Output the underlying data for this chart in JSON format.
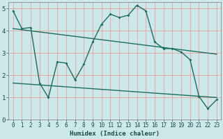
{
  "xlabel": "Humidex (Indice chaleur)",
  "bg_color": "#cce8e8",
  "grid_color": "#e8a0a0",
  "line_color": "#1a6e60",
  "xlim": [
    -0.5,
    23.5
  ],
  "ylim": [
    0,
    5.3
  ],
  "xticks": [
    0,
    1,
    2,
    3,
    4,
    5,
    6,
    7,
    8,
    9,
    10,
    11,
    12,
    13,
    14,
    15,
    16,
    17,
    18,
    19,
    20,
    21,
    22,
    23
  ],
  "yticks": [
    0,
    1,
    2,
    3,
    4,
    5
  ],
  "main_line_x": [
    0,
    1,
    2,
    3,
    4,
    5,
    6,
    7,
    8,
    9,
    10,
    11,
    12,
    13,
    14,
    15,
    16,
    17,
    18,
    19,
    20,
    21,
    22,
    23
  ],
  "main_line_y": [
    4.9,
    4.1,
    4.15,
    1.65,
    1.0,
    2.6,
    2.55,
    1.8,
    2.5,
    3.5,
    4.3,
    4.75,
    4.6,
    4.7,
    5.15,
    4.9,
    3.5,
    3.2,
    3.2,
    3.05,
    2.7,
    1.05,
    0.5,
    0.9
  ],
  "upper_trend_x": [
    0,
    23
  ],
  "upper_trend_y": [
    4.1,
    2.95
  ],
  "lower_trend_x": [
    0,
    23
  ],
  "lower_trend_y": [
    1.65,
    1.0
  ]
}
